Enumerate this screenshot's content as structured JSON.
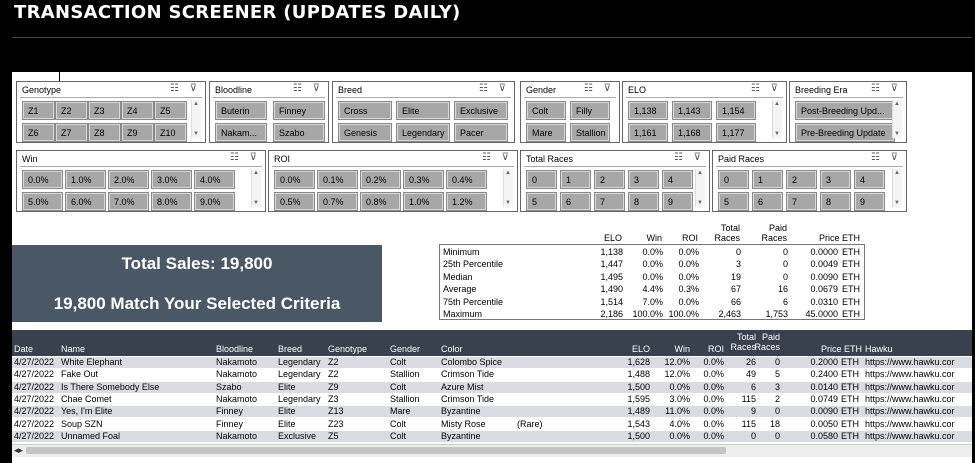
{
  "title": "TRANSACTION SCREENER (UPDATES DAILY)",
  "icons": {
    "multi_select": "multi-select-icon",
    "clear_filter": "clear-filter-icon"
  },
  "slicers": {
    "genotype": {
      "title": "Genotype",
      "items": [
        "Z1",
        "Z2",
        "Z3",
        "Z4",
        "Z5",
        "Z6",
        "Z7",
        "Z8",
        "Z9",
        "Z10"
      ]
    },
    "bloodline": {
      "title": "Bloodline",
      "items": [
        "Buterin",
        "Finney",
        "Nakam...",
        "Szabo"
      ]
    },
    "breed": {
      "title": "Breed",
      "items": [
        "Cross",
        "Elite",
        "Exclusive",
        "Genesis",
        "Legendary",
        "Pacer"
      ]
    },
    "gender": {
      "title": "Gender",
      "items": [
        "Colt",
        "Filly",
        "Mare",
        "Stallion"
      ]
    },
    "elo": {
      "title": "ELO",
      "items": [
        "1,138",
        "1,143",
        "1,154",
        "1,161",
        "1,168",
        "1,177"
      ]
    },
    "breeding_era": {
      "title": "Breeding Era",
      "items": [
        "Post-Breeding Upd...",
        "Pre-Breeding Update"
      ]
    },
    "win": {
      "title": "Win",
      "items": [
        "0.0%",
        "1.0%",
        "2.0%",
        "3.0%",
        "4.0%",
        "5.0%",
        "6.0%",
        "7.0%",
        "8.0%",
        "9.0%"
      ]
    },
    "roi": {
      "title": "ROI",
      "items": [
        "0.0%",
        "0.1%",
        "0.2%",
        "0.3%",
        "0.4%",
        "0.5%",
        "0.7%",
        "0.8%",
        "1.0%",
        "1.2%"
      ]
    },
    "total_races": {
      "title": "Total Races",
      "items": [
        "0",
        "1",
        "2",
        "3",
        "4",
        "5",
        "6",
        "7",
        "8",
        "9"
      ]
    },
    "paid_races": {
      "title": "Paid Races",
      "items": [
        "0",
        "1",
        "2",
        "3",
        "4",
        "5",
        "6",
        "7",
        "8",
        "9"
      ]
    }
  },
  "sales": {
    "total": "Total Sales: 19,800",
    "match": "19,800 Match Your Selected Criteria"
  },
  "summary": {
    "headers": {
      "elo": "ELO",
      "win": "Win",
      "roi": "ROI",
      "total_races": "Total Races",
      "paid_races": "Paid Races",
      "price": "Price ETH"
    },
    "rows": [
      {
        "label": "Minimum",
        "elo": "1,138",
        "win": "0.0%",
        "roi": "0.0%",
        "total": "0",
        "paid": "0",
        "price": "0.0000",
        "unit": "ETH"
      },
      {
        "label": "25th Percentile",
        "elo": "1,447",
        "win": "0.0%",
        "roi": "0.0%",
        "total": "3",
        "paid": "0",
        "price": "0.0049",
        "unit": "ETH"
      },
      {
        "label": "Median",
        "elo": "1,495",
        "win": "0.0%",
        "roi": "0.0%",
        "total": "19",
        "paid": "0",
        "price": "0.0090",
        "unit": "ETH"
      },
      {
        "label": "Average",
        "elo": "1,490",
        "win": "4.4%",
        "roi": "0.3%",
        "total": "67",
        "paid": "16",
        "price": "0.0679",
        "unit": "ETH"
      },
      {
        "label": "75th Percentile",
        "elo": "1,514",
        "win": "7.0%",
        "roi": "0.0%",
        "total": "66",
        "paid": "6",
        "price": "0.0310",
        "unit": "ETH"
      },
      {
        "label": "Maximum",
        "elo": "2,186",
        "win": "100.0%",
        "roi": "100.0%",
        "total": "2,463",
        "paid": "1,753",
        "price": "45.0000",
        "unit": "ETH"
      }
    ]
  },
  "table": {
    "headers": {
      "date": "Date",
      "name": "Name",
      "bloodline": "Bloodline",
      "breed": "Breed",
      "genotype": "Genotype",
      "gender": "Gender",
      "color": "Color",
      "elo": "ELO",
      "win": "Win",
      "roi": "ROI",
      "total_races": "Total Races",
      "paid_races": "Paid Races",
      "price": "Price ETH",
      "hawku": "Hawku"
    },
    "rows": [
      {
        "date": "4/27/2022",
        "name": "White Elephant",
        "bloodline": "Nakamoto",
        "breed": "Legendary",
        "genotype": "Z2",
        "gender": "Colt",
        "color": "Colombo Spice",
        "tag": "",
        "elo": "1,628",
        "win": "12.0%",
        "roi": "0.0%",
        "total": "26",
        "paid": "0",
        "price": "0.2000",
        "unit": "ETH",
        "hawku": "https://www.hawku.cor"
      },
      {
        "date": "4/27/2022",
        "name": "Fake Out",
        "bloodline": "Nakamoto",
        "breed": "Legendary",
        "genotype": "Z2",
        "gender": "Stallion",
        "color": "Crimson Tide",
        "tag": "",
        "elo": "1,488",
        "win": "12.0%",
        "roi": "0.0%",
        "total": "49",
        "paid": "5",
        "price": "0.2400",
        "unit": "ETH",
        "hawku": "https://www.hawku.cor"
      },
      {
        "date": "4/27/2022",
        "name": "Is There Somebody Else",
        "bloodline": "Szabo",
        "breed": "Elite",
        "genotype": "Z9",
        "gender": "Colt",
        "color": "Azure Mist",
        "tag": "",
        "elo": "1,500",
        "win": "0.0%",
        "roi": "0.0%",
        "total": "6",
        "paid": "3",
        "price": "0.0140",
        "unit": "ETH",
        "hawku": "https://www.hawku.cor"
      },
      {
        "date": "4/27/2022",
        "name": "Chae Comet",
        "bloodline": "Nakamoto",
        "breed": "Legendary",
        "genotype": "Z3",
        "gender": "Stallion",
        "color": "Crimson Tide",
        "tag": "",
        "elo": "1,595",
        "win": "3.0%",
        "roi": "0.0%",
        "total": "115",
        "paid": "2",
        "price": "0.0749",
        "unit": "ETH",
        "hawku": "https://www.hawku.cor"
      },
      {
        "date": "4/27/2022",
        "name": "Yes, I'm Elite",
        "bloodline": "Finney",
        "breed": "Elite",
        "genotype": "Z13",
        "gender": "Mare",
        "color": "Byzantine",
        "tag": "",
        "elo": "1,489",
        "win": "11.0%",
        "roi": "0.0%",
        "total": "9",
        "paid": "0",
        "price": "0.0090",
        "unit": "ETH",
        "hawku": "https://www.hawku.cor"
      },
      {
        "date": "4/27/2022",
        "name": "Soup SZN",
        "bloodline": "Finney",
        "breed": "Elite",
        "genotype": "Z23",
        "gender": "Colt",
        "color": "Misty Rose",
        "tag": "(Rare)",
        "elo": "1,543",
        "win": "4.0%",
        "roi": "0.0%",
        "total": "115",
        "paid": "18",
        "price": "0.0050",
        "unit": "ETH",
        "hawku": "https://www.hawku.cor"
      },
      {
        "date": "4/27/2022",
        "name": "Unnamed Foal",
        "bloodline": "Nakamoto",
        "breed": "Exclusive",
        "genotype": "Z5",
        "gender": "Colt",
        "color": "Byzantine",
        "tag": "",
        "elo": "1,500",
        "win": "0.0%",
        "roi": "0.0%",
        "total": "0",
        "paid": "0",
        "price": "0.0580",
        "unit": "ETH",
        "hawku": "https://www.hawku.cor"
      }
    ]
  },
  "colors": {
    "background": "#000000",
    "sales_card": "#4a5866",
    "table_header": "#38414d",
    "chip": "#a7a7a7",
    "row_shade": "#d9dde3"
  }
}
